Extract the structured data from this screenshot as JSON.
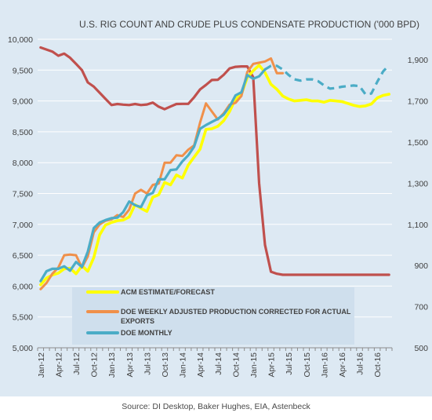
{
  "source_note": "Source: DI Desktop, Baker Hughes, EIA, Astenbeck",
  "colors": {
    "background": "#dde9f3",
    "legend_box": "#cfdfed",
    "grid": "#ffffff",
    "acm": "#ffff00",
    "doe_weekly": "#f0904a",
    "doe_monthly": "#4bacc6",
    "rig_count": "#c0504d"
  },
  "chart_data": {
    "type": "line",
    "title": "U.S. RIG COUNT AND CRUDE PLUS CONDENSATE PRODUCTION ('000 BPD)",
    "xlabel": "",
    "ylabel": "",
    "x": [
      "Jan-12",
      "Feb-12",
      "Mar-12",
      "Apr-12",
      "May-12",
      "Jun-12",
      "Jul-12",
      "Aug-12",
      "Sep-12",
      "Oct-12",
      "Nov-12",
      "Dec-12",
      "Jan-13",
      "Feb-13",
      "Mar-13",
      "Apr-13",
      "May-13",
      "Jun-13",
      "Jul-13",
      "Aug-13",
      "Sep-13",
      "Oct-13",
      "Nov-13",
      "Dec-13",
      "Jan-14",
      "Feb-14",
      "Mar-14",
      "Apr-14",
      "May-14",
      "Jun-14",
      "Jul-14",
      "Aug-14",
      "Sep-14",
      "Oct-14",
      "Nov-14",
      "Dec-14",
      "Jan-15",
      "Feb-15",
      "Mar-15",
      "Apr-15",
      "May-15",
      "Jun-15",
      "Jul-15",
      "Aug-15",
      "Sep-15",
      "Oct-15",
      "Nov-15",
      "Dec-15",
      "Jan-16",
      "Feb-16",
      "Mar-16",
      "Apr-16",
      "May-16",
      "Jun-16",
      "Jul-16",
      "Aug-16",
      "Sep-16",
      "Oct-16",
      "Nov-16",
      "Dec-16"
    ],
    "x_tick_labels": [
      "Jan-12",
      "Apr-12",
      "Jul-12",
      "Oct-12",
      "Jan-13",
      "Apr-13",
      "Jul-13",
      "Oct-13",
      "Jan-14",
      "Apr-14",
      "Jul-14",
      "Oct-14",
      "Jan-15",
      "Apr-15",
      "Jul-15",
      "Oct-15",
      "Jan-16",
      "Apr-16",
      "Jul-16",
      "Oct-16"
    ],
    "y_left": {
      "ylim": [
        5000,
        10000
      ],
      "ticks": [
        "5,000",
        "5,500",
        "6,000",
        "6,500",
        "7,000",
        "7,500",
        "8,000",
        "8,500",
        "9,000",
        "9,500",
        "10,000"
      ]
    },
    "y_right": {
      "ylim": [
        500,
        2000
      ],
      "ticks": [
        "500",
        "700",
        "900",
        "1,100",
        "1,300",
        "1,500",
        "1,700",
        "1,900"
      ]
    },
    "grid": true,
    "legend_placement": "lower-center",
    "series": [
      {
        "name": "ACM ESTIMATE/FORECAST",
        "axis": "left",
        "color": "#ffff00",
        "values": [
          6020,
          6130,
          6180,
          6210,
          6280,
          6290,
          6200,
          6330,
          6240,
          6460,
          6830,
          6990,
          7030,
          7060,
          7070,
          7120,
          7320,
          7260,
          7210,
          7440,
          7480,
          7680,
          7640,
          7800,
          7750,
          7960,
          8090,
          8220,
          8540,
          8550,
          8590,
          8680,
          8830,
          9030,
          9110,
          9380,
          9490,
          9580,
          9460,
          9270,
          9190,
          9080,
          9030,
          9000,
          9010,
          9020,
          9000,
          9000,
          8980,
          9010,
          9000,
          8990,
          8960,
          8930,
          8910,
          8920,
          8950,
          9050,
          9090,
          9110
        ]
      },
      {
        "name": "DOE WEEKLY ADJUSTED PRODUCTION CORRECTED FOR ACTUAL EXPORTS",
        "axis": "left",
        "color": "#f0904a",
        "values": [
          5950,
          6050,
          6200,
          6300,
          6500,
          6510,
          6500,
          6300,
          6480,
          6870,
          7000,
          7060,
          7080,
          7150,
          7120,
          7240,
          7500,
          7560,
          7500,
          7640,
          7660,
          8000,
          8000,
          8120,
          8110,
          8210,
          8280,
          8650,
          8960,
          8830,
          8700,
          8800,
          8940,
          8970,
          9080,
          9470,
          9600,
          9620,
          9640,
          9690,
          9450,
          9450,
          null,
          null,
          null,
          null,
          null,
          null,
          null,
          null,
          null,
          null,
          null,
          null,
          null,
          null,
          null,
          null,
          null,
          null
        ]
      },
      {
        "name": "DOE MONTHLY",
        "axis": "left",
        "color": "#4bacc6",
        "values": [
          6080,
          6240,
          6280,
          6280,
          6320,
          6250,
          6390,
          6310,
          6560,
          6940,
          7030,
          7070,
          7100,
          7110,
          7200,
          7370,
          7310,
          7280,
          7470,
          7510,
          7730,
          7730,
          7880,
          7890,
          8020,
          8120,
          8260,
          8550,
          8610,
          8660,
          8710,
          8780,
          8910,
          9090,
          9140,
          9420,
          9360,
          9400,
          9510,
          null,
          null,
          null,
          null,
          null,
          null,
          null,
          null,
          null,
          null,
          null,
          null,
          null,
          null,
          null,
          null,
          null,
          null,
          null,
          null,
          null
        ]
      },
      {
        "name": "DOE MONTHLY FORECAST",
        "axis": "left",
        "color": "#4bacc6",
        "style": "dashed",
        "values": [
          null,
          null,
          null,
          null,
          null,
          null,
          null,
          null,
          null,
          null,
          null,
          null,
          null,
          null,
          null,
          null,
          null,
          null,
          null,
          null,
          null,
          null,
          null,
          null,
          null,
          null,
          null,
          null,
          null,
          null,
          null,
          null,
          null,
          null,
          null,
          null,
          null,
          null,
          9510,
          9570,
          9570,
          9510,
          9420,
          9350,
          9330,
          9350,
          9350,
          9320,
          9250,
          9200,
          9210,
          9230,
          9240,
          9250,
          9240,
          9110,
          9120,
          9310,
          9480,
          9580
        ]
      },
      {
        "name": "RIG COUNT",
        "axis": "right",
        "color": "#c0504d",
        "values": [
          1960,
          1950,
          1940,
          1920,
          1930,
          1910,
          1880,
          1850,
          1790,
          1770,
          1740,
          1710,
          1680,
          1685,
          1682,
          1680,
          1685,
          1680,
          1683,
          1692,
          1672,
          1660,
          1673,
          1685,
          1686,
          1686,
          1718,
          1756,
          1778,
          1802,
          1803,
          1827,
          1858,
          1866,
          1868,
          1868,
          1815,
          1300,
          1000,
          870,
          860,
          855,
          855,
          855,
          855,
          855,
          855,
          855,
          855,
          855,
          855,
          855,
          855,
          855,
          855,
          855,
          855,
          855,
          855,
          855
        ]
      }
    ],
    "legend": [
      {
        "label": "ACM ESTIMATE/FORECAST",
        "color": "#ffff00"
      },
      {
        "label": "DOE WEEKLY ADJUSTED PRODUCTION CORRECTED FOR ACTUAL EXPORTS",
        "color": "#f0904a"
      },
      {
        "label": "DOE MONTHLY",
        "color": "#4bacc6"
      }
    ]
  }
}
